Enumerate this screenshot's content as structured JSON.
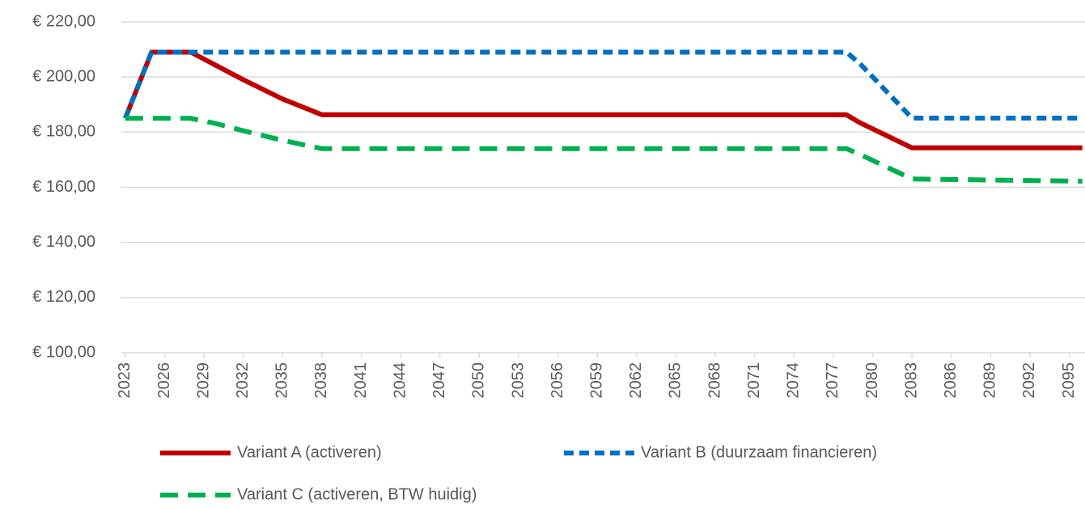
{
  "chart_data": {
    "type": "line",
    "x": [
      2023,
      2025,
      2026,
      2028,
      2030,
      2032,
      2035,
      2038,
      2078,
      2079,
      2083,
      2096
    ],
    "series": [
      {
        "name": "Variant A (activeren)",
        "color": "#c00000",
        "dash": "solid",
        "values": [
          185,
          209,
          209,
          209,
          204,
          199,
          192,
          186.3,
          186.3,
          183.5,
          174.3,
          174.3
        ]
      },
      {
        "name": "Variant B (duurzaam financieren)",
        "color": "#0070c0",
        "dash": "short",
        "values": [
          185,
          209,
          209,
          209,
          209,
          209,
          209,
          209,
          209,
          205,
          185.1,
          185.1
        ]
      },
      {
        "name": "Variant C (activeren, BTW huidig)",
        "color": "#00b050",
        "dash": "long",
        "values": [
          185,
          185,
          185,
          185,
          183,
          180.5,
          177,
          174,
          174,
          172,
          163,
          162.2
        ]
      }
    ],
    "xlim": [
      2022.7,
      2096.2
    ],
    "xticks": [
      2023,
      2026,
      2029,
      2032,
      2035,
      2038,
      2041,
      2044,
      2047,
      2050,
      2053,
      2056,
      2059,
      2062,
      2065,
      2068,
      2071,
      2074,
      2077,
      2080,
      2083,
      2086,
      2089,
      2092,
      2095
    ],
    "ylim": [
      100,
      220
    ],
    "yticks": [
      {
        "value": 100,
        "label": "€ 100,00"
      },
      {
        "value": 120,
        "label": "€ 120,00"
      },
      {
        "value": 140,
        "label": "€ 140,00"
      },
      {
        "value": 160,
        "label": "€ 160,00"
      },
      {
        "value": 180,
        "label": "€ 180,00"
      },
      {
        "value": 200,
        "label": "€ 200,00"
      },
      {
        "value": 220,
        "label": "€ 220,00"
      }
    ],
    "grid": true,
    "legend": "bottom"
  }
}
